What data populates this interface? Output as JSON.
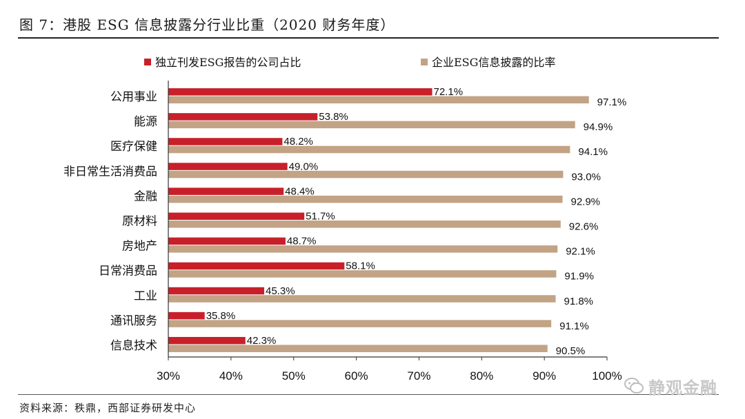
{
  "header": {
    "title": "图 7：港股 ESG 信息披露分行业比重（2020 财务年度）"
  },
  "footer": {
    "source": "资料来源：秩鼎，西部证券研发中心"
  },
  "watermark": {
    "text": "静观金融"
  },
  "colors": {
    "series1": "#c8202a",
    "series2": "#c2a385",
    "axis": "#333333",
    "text": "#111111"
  },
  "chart_data": {
    "type": "bar",
    "orientation": "horizontal",
    "title": "图 7：港股 ESG 信息披露分行业比重（2020 财务年度）",
    "categories": [
      "公用事业",
      "能源",
      "医疗保健",
      "非日常生活消费品",
      "金融",
      "原材料",
      "房地产",
      "日常消费品",
      "工业",
      "通讯服务",
      "信息技术"
    ],
    "series": [
      {
        "name": "独立刊发ESG报告的公司占比",
        "values": [
          72.1,
          53.8,
          48.2,
          49.0,
          48.4,
          51.7,
          48.7,
          58.1,
          45.3,
          35.8,
          42.3
        ]
      },
      {
        "name": "企业ESG信息披露的比率",
        "values": [
          97.1,
          94.9,
          94.1,
          93.0,
          92.9,
          92.6,
          92.1,
          91.9,
          91.8,
          91.1,
          90.5
        ]
      }
    ],
    "xlim": [
      30,
      100
    ],
    "xticks": [
      30,
      40,
      50,
      60,
      70,
      80,
      90,
      100
    ],
    "tick_suffix": "%",
    "value_suffix": "%",
    "legend_position": "top",
    "grid": false
  }
}
